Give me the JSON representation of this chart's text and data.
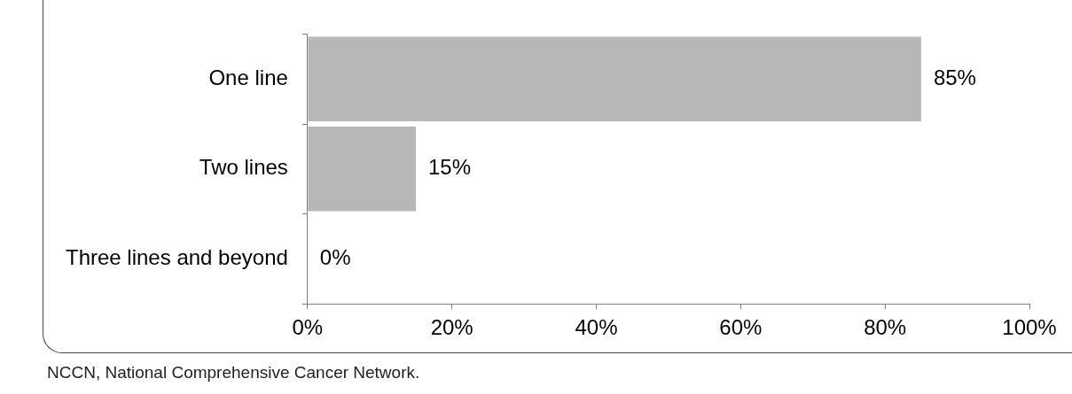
{
  "chart_data": {
    "type": "bar",
    "orientation": "horizontal",
    "categories": [
      "One line",
      "Two lines",
      "Three lines and beyond"
    ],
    "values": [
      85,
      15,
      0
    ],
    "color": "#b7b7b9",
    "value_labels": [
      "85%",
      "15%",
      "0%"
    ],
    "xlim": [
      0,
      100
    ],
    "xticks": [
      {
        "value": 0,
        "label": "0%"
      },
      {
        "value": 20,
        "label": "20%"
      },
      {
        "value": 40,
        "label": "40%"
      },
      {
        "value": 60,
        "label": "60%"
      },
      {
        "value": 80,
        "label": "80%"
      },
      {
        "value": 100,
        "label": "100%"
      }
    ],
    "grid": false,
    "legend": false,
    "annotations": [
      "NCCN, National Comprehensive Cancer Network."
    ]
  }
}
